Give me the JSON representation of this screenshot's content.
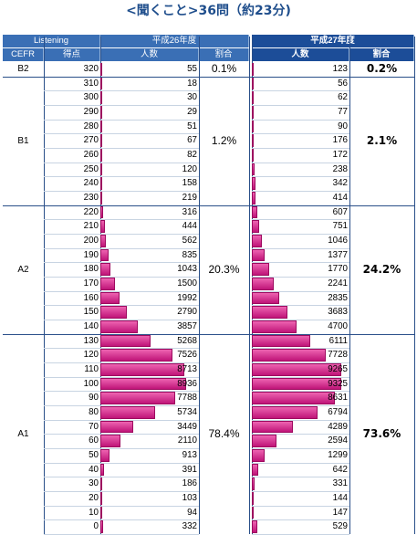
{
  "title": "<聞くこと>36問（約23分)",
  "header": {
    "listening": "Listening",
    "cefr": "CEFR",
    "score": "得点",
    "h26": "平成26年度",
    "h26_people": "人数",
    "h26_rate": "割合",
    "h27": "平成27年度",
    "h27_people": "人数",
    "h27_rate": "割合"
  },
  "rows": [
    {
      "score": "320",
      "h26": "55",
      "h27": "123",
      "cefr": "B2"
    },
    {
      "score": "310",
      "h26": "18",
      "h27": "56",
      "cefr": "B1"
    },
    {
      "score": "300",
      "h26": "30",
      "h27": "62",
      "cefr": "B1"
    },
    {
      "score": "290",
      "h26": "29",
      "h27": "77",
      "cefr": "B1"
    },
    {
      "score": "280",
      "h26": "51",
      "h27": "90",
      "cefr": "B1"
    },
    {
      "score": "270",
      "h26": "67",
      "h27": "176",
      "cefr": "B1"
    },
    {
      "score": "260",
      "h26": "82",
      "h27": "172",
      "cefr": "B1"
    },
    {
      "score": "250",
      "h26": "120",
      "h27": "238",
      "cefr": "B1"
    },
    {
      "score": "240",
      "h26": "158",
      "h27": "342",
      "cefr": "B1"
    },
    {
      "score": "230",
      "h26": "219",
      "h27": "414",
      "cefr": "B1"
    },
    {
      "score": "220",
      "h26": "316",
      "h27": "607",
      "cefr": "A2"
    },
    {
      "score": "210",
      "h26": "444",
      "h27": "751",
      "cefr": "A2"
    },
    {
      "score": "200",
      "h26": "562",
      "h27": "1046",
      "cefr": "A2"
    },
    {
      "score": "190",
      "h26": "835",
      "h27": "1377",
      "cefr": "A2"
    },
    {
      "score": "180",
      "h26": "1043",
      "h27": "1770",
      "cefr": "A2"
    },
    {
      "score": "170",
      "h26": "1500",
      "h27": "2241",
      "cefr": "A2"
    },
    {
      "score": "160",
      "h26": "1992",
      "h27": "2835",
      "cefr": "A2"
    },
    {
      "score": "150",
      "h26": "2790",
      "h27": "3683",
      "cefr": "A2"
    },
    {
      "score": "140",
      "h26": "3857",
      "h27": "4700",
      "cefr": "A2"
    },
    {
      "score": "130",
      "h26": "5268",
      "h27": "6111",
      "cefr": "A1"
    },
    {
      "score": "120",
      "h26": "7526",
      "h27": "7728",
      "cefr": "A1"
    },
    {
      "score": "110",
      "h26": "8713",
      "h27": "9265",
      "cefr": "A1"
    },
    {
      "score": "100",
      "h26": "8936",
      "h27": "9325",
      "cefr": "A1"
    },
    {
      "score": "90",
      "h26": "7788",
      "h27": "8631",
      "cefr": "A1"
    },
    {
      "score": "80",
      "h26": "5734",
      "h27": "6794",
      "cefr": "A1"
    },
    {
      "score": "70",
      "h26": "3449",
      "h27": "4289",
      "cefr": "A1"
    },
    {
      "score": "60",
      "h26": "2110",
      "h27": "2594",
      "cefr": "A1"
    },
    {
      "score": "50",
      "h26": "913",
      "h27": "1299",
      "cefr": "A1"
    },
    {
      "score": "40",
      "h26": "391",
      "h27": "642",
      "cefr": "A1"
    },
    {
      "score": "30",
      "h26": "186",
      "h27": "331",
      "cefr": "A1"
    },
    {
      "score": "20",
      "h26": "103",
      "h27": "144",
      "cefr": "A1"
    },
    {
      "score": "10",
      "h26": "94",
      "h27": "147",
      "cefr": "A1"
    },
    {
      "score": "0",
      "h26": "332",
      "h27": "529",
      "cefr": "A1"
    }
  ],
  "groups": [
    {
      "cefr": "B2",
      "pct26": "0.1%",
      "pct27": "0.2%"
    },
    {
      "cefr": "B1",
      "pct26": "1.2%",
      "pct27": "2.1%"
    },
    {
      "cefr": "A2",
      "pct26": "20.3%",
      "pct27": "24.2%"
    },
    {
      "cefr": "A1",
      "pct26": "78.4%",
      "pct27": "73.6%"
    }
  ],
  "colors": {
    "header_left": "#3a6fb5",
    "header_right": "#1c4d98",
    "bar_top": "#ee63b1",
    "bar_bottom": "#bf1478"
  },
  "chart_data": {
    "type": "table",
    "title": "<聞くこと>36問（約23分)",
    "columns": [
      "CEFR",
      "得点",
      "平成26年度 人数",
      "平成26年度 割合",
      "平成27年度 人数",
      "平成27年度 割合"
    ],
    "x": [
      320,
      310,
      300,
      290,
      280,
      270,
      260,
      250,
      240,
      230,
      220,
      210,
      200,
      190,
      180,
      170,
      160,
      150,
      140,
      130,
      120,
      110,
      100,
      90,
      80,
      70,
      60,
      50,
      40,
      30,
      20,
      10,
      0
    ],
    "series": [
      {
        "name": "平成26年度",
        "values": [
          55,
          18,
          30,
          29,
          51,
          67,
          82,
          120,
          158,
          219,
          316,
          444,
          562,
          835,
          1043,
          1500,
          1992,
          2790,
          3857,
          5268,
          7526,
          8713,
          8936,
          7788,
          5734,
          3449,
          2110,
          913,
          391,
          186,
          103,
          94,
          332
        ]
      },
      {
        "name": "平成27年度",
        "values": [
          123,
          56,
          62,
          77,
          90,
          176,
          172,
          238,
          342,
          414,
          607,
          751,
          1046,
          1377,
          1770,
          2241,
          2835,
          3683,
          4700,
          6111,
          7728,
          9265,
          9325,
          8631,
          6794,
          4289,
          2594,
          1299,
          642,
          331,
          144,
          147,
          529
        ]
      }
    ],
    "groups": [
      {
        "cefr": "B2",
        "pct26": "0.1%",
        "pct27": "0.2%"
      },
      {
        "cefr": "B1",
        "pct26": "1.2%",
        "pct27": "2.1%"
      },
      {
        "cefr": "A2",
        "pct26": "20.3%",
        "pct27": "24.2%"
      },
      {
        "cefr": "A1",
        "pct26": "78.4%",
        "pct27": "73.6%"
      }
    ]
  }
}
